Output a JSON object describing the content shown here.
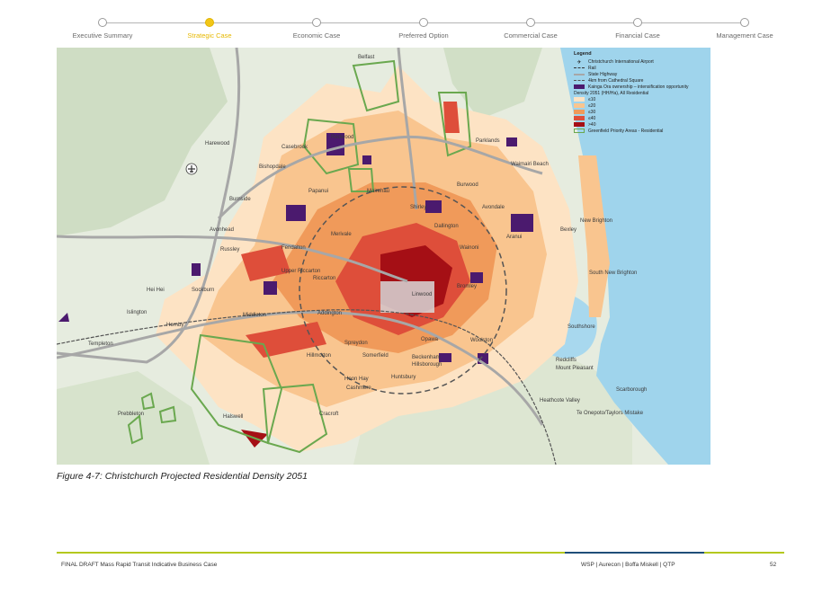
{
  "nav": {
    "steps": [
      {
        "label": "Executive Summary"
      },
      {
        "label": "Strategic Case"
      },
      {
        "label": "Economic Case"
      },
      {
        "label": "Preferred Option"
      },
      {
        "label": "Commercial Case"
      },
      {
        "label": "Financial Case"
      },
      {
        "label": "Management Case"
      }
    ],
    "active_index": 1,
    "active_color": "#f2c617"
  },
  "map": {
    "legend": {
      "title": "Legend",
      "items": [
        {
          "label": "Christchurch International Airport",
          "icon": "airport-icon"
        },
        {
          "label": "Rail",
          "icon": "rail-line"
        },
        {
          "label": "State Highway",
          "icon": "highway-line"
        },
        {
          "label": "4km from Cathedral Square",
          "icon": "dashed-ring"
        },
        {
          "label": "Kainga Ora ownership – intensification opportunity",
          "icon": "purple-fill",
          "color": "#4b1a6e"
        },
        {
          "label": "Density 2051 (HH/Ha), All Residential",
          "icon": "heading"
        },
        {
          "label": "≤10",
          "icon": "swatch",
          "color": "#fde3c4"
        },
        {
          "label": "≤20",
          "icon": "swatch",
          "color": "#f9c58f"
        },
        {
          "label": "≤30",
          "icon": "swatch",
          "color": "#f09a5a"
        },
        {
          "label": "≤40",
          "icon": "swatch",
          "color": "#de4e3a"
        },
        {
          "label": ">40",
          "icon": "swatch",
          "color": "#a50f15"
        },
        {
          "label": "Greenfield Priority Areas - Residential",
          "icon": "green-outline",
          "color": "#6aa84f"
        }
      ]
    },
    "places": [
      {
        "name": "Belfast"
      },
      {
        "name": "Harewood"
      },
      {
        "name": "Casebrook"
      },
      {
        "name": "Redwood"
      },
      {
        "name": "Bishopdale"
      },
      {
        "name": "Burnside"
      },
      {
        "name": "Papanui"
      },
      {
        "name": "Mairehau"
      },
      {
        "name": "Burwood"
      },
      {
        "name": "Parklands"
      },
      {
        "name": "Waimairi Beach"
      },
      {
        "name": "Avonhead"
      },
      {
        "name": "Russley"
      },
      {
        "name": "Fendalton"
      },
      {
        "name": "Merivale"
      },
      {
        "name": "Shirley"
      },
      {
        "name": "Dallington"
      },
      {
        "name": "Avondale"
      },
      {
        "name": "New Brighton"
      },
      {
        "name": "Bexley"
      },
      {
        "name": "Aranui"
      },
      {
        "name": "Wainoni"
      },
      {
        "name": "Upper Riccarton"
      },
      {
        "name": "Riccarton"
      },
      {
        "name": "Linwood"
      },
      {
        "name": "Bromley"
      },
      {
        "name": "South New Brighton"
      },
      {
        "name": "Hornby"
      },
      {
        "name": "Sockburn"
      },
      {
        "name": "Hei Hei"
      },
      {
        "name": "Islington"
      },
      {
        "name": "Middleton"
      },
      {
        "name": "Addington"
      },
      {
        "name": "Templeton"
      },
      {
        "name": "Opawa"
      },
      {
        "name": "Woolston"
      },
      {
        "name": "Southshore"
      },
      {
        "name": "Spreydon"
      },
      {
        "name": "Somerfield"
      },
      {
        "name": "Hillmorton"
      },
      {
        "name": "Beckenham"
      },
      {
        "name": "Hillsborough"
      },
      {
        "name": "Redcliffs"
      },
      {
        "name": "Mount Pleasant"
      },
      {
        "name": "Halswell"
      },
      {
        "name": "Hoon Hay"
      },
      {
        "name": "Cashmere"
      },
      {
        "name": "Huntsbury"
      },
      {
        "name": "Heathcote Valley"
      },
      {
        "name": "Scarborough"
      },
      {
        "name": "Te Onepoto/Taylors Mistake"
      },
      {
        "name": "Prebbleton"
      },
      {
        "name": "Cracroft"
      }
    ]
  },
  "caption": "Figure 4-7: Christchurch Projected Residential Density 2051",
  "footer": {
    "left": "FINAL DRAFT Mass Rapid Transit Indicative Business Case",
    "right": "WSP | Aurecon | Boffa Miskell | QTP",
    "page": "52"
  }
}
